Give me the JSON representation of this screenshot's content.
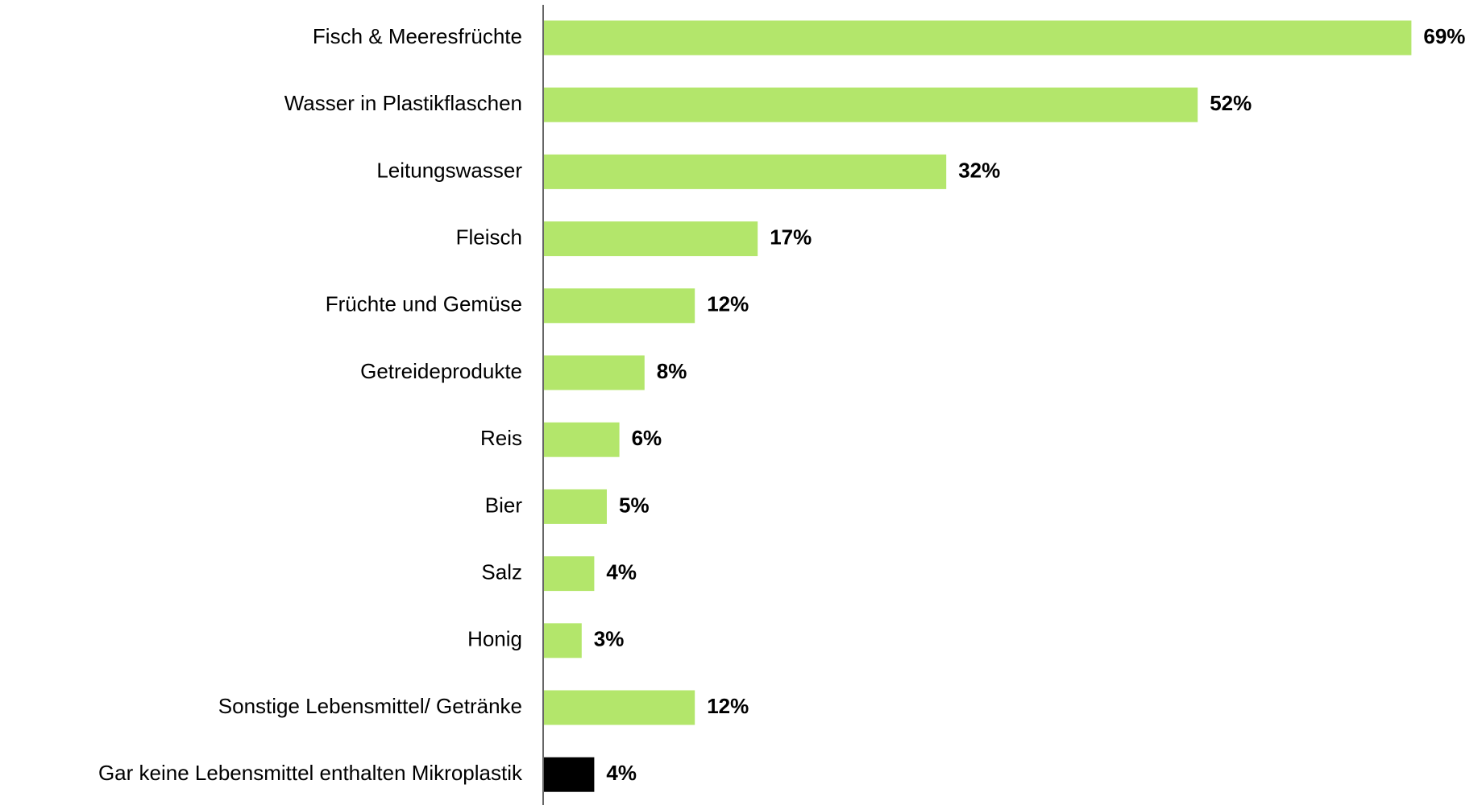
{
  "chart_data": {
    "type": "bar",
    "orientation": "horizontal",
    "categories": [
      "Fisch & Meeresfrüchte",
      "Wasser in Plastikflaschen",
      "Leitungswasser",
      "Fleisch",
      "Früchte und Gemüse",
      "Getreideprodukte",
      "Reis",
      "Bier",
      "Salz",
      "Honig",
      "Sonstige Lebensmittel/ Getränke",
      "Gar keine Lebensmittel enthalten Mikroplastik"
    ],
    "values": [
      69,
      52,
      32,
      17,
      12,
      8,
      6,
      5,
      4,
      3,
      12,
      4
    ],
    "value_labels": [
      "69%",
      "52%",
      "32%",
      "17%",
      "12%",
      "8%",
      "6%",
      "5%",
      "4%",
      "3%",
      "12%",
      "4%"
    ],
    "colors": [
      "#b3e66b",
      "#b3e66b",
      "#b3e66b",
      "#b3e66b",
      "#b3e66b",
      "#b3e66b",
      "#b3e66b",
      "#b3e66b",
      "#b3e66b",
      "#b3e66b",
      "#b3e66b",
      "#000000"
    ]
  }
}
